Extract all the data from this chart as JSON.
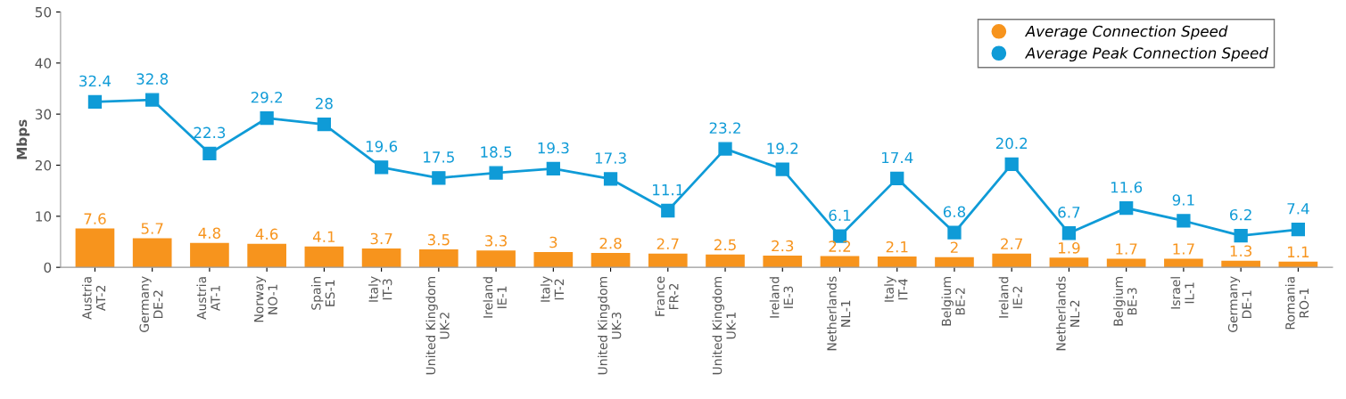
{
  "chart_data": {
    "type": "bar",
    "ylabel": "Mbps",
    "categories": [
      "Austria\nAT-2",
      "Germany\nDE-2",
      "Austria\nAT-1",
      "Norway\nNO-1",
      "Spain\nES-1",
      "Italy\nIT-3",
      "United Kingdom\nUK-2",
      "Ireland\nIE-1",
      "Italy\nIT-2",
      "United Kingdom\nUK-3",
      "France\nFR-2",
      "United Kingdom\nUK-1",
      "Ireland\nIE-3",
      "Netherlands\nNL-1",
      "Italy\nIT-4",
      "Belgium\nBE-2",
      "Ireland\nIE-2",
      "Netherlands\nNL-2",
      "Belgium\nBE-3",
      "Israel\nIL-1",
      "Germany\nDE-1",
      "Romania\nRO-1"
    ],
    "series": [
      {
        "name": "Average Connection Speed",
        "color": "#f7941d",
        "values": [
          7.6,
          5.7,
          4.8,
          4.6,
          4.1,
          3.7,
          3.5,
          3.3,
          3,
          2.8,
          2.7,
          2.5,
          2.3,
          2.2,
          2.1,
          2,
          2.7,
          1.9,
          1.7,
          1.7,
          1.3,
          1.1
        ]
      },
      {
        "name": "Average Peak Connection Speed",
        "type": "line",
        "color": "#0f9bd7",
        "marker": "square",
        "values": [
          32.4,
          32.8,
          22.3,
          29.2,
          28,
          19.6,
          17.5,
          18.5,
          19.3,
          17.3,
          11.1,
          23.2,
          19.2,
          6.1,
          17.4,
          6.8,
          20.2,
          6.7,
          11.6,
          9.1,
          6.2,
          7.4
        ]
      }
    ],
    "ylim": [
      0,
      50
    ],
    "yticks": [
      0,
      10,
      20,
      30,
      40,
      50
    ],
    "grid": false,
    "legend": "top right",
    "data_labels": true
  }
}
